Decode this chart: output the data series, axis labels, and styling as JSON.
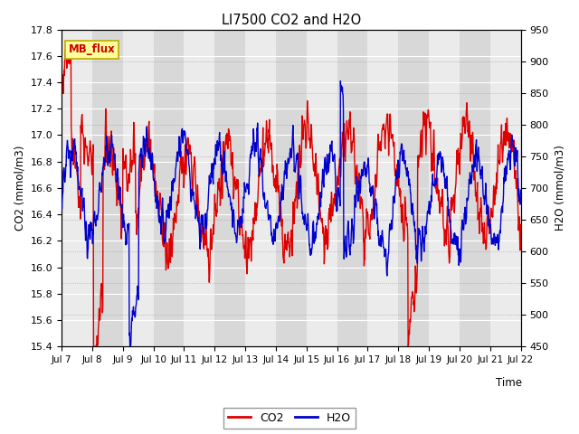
{
  "title": "LI7500 CO2 and H2O",
  "xlabel": "Time",
  "ylabel_left": "CO2 (mmol/m3)",
  "ylabel_right": "H2O (mmol/m3)",
  "ylim_left": [
    15.4,
    17.8
  ],
  "ylim_right": [
    450,
    950
  ],
  "yticks_left": [
    15.4,
    15.6,
    15.8,
    16.0,
    16.2,
    16.4,
    16.6,
    16.8,
    17.0,
    17.2,
    17.4,
    17.6,
    17.8
  ],
  "yticks_right": [
    450,
    500,
    550,
    600,
    650,
    700,
    750,
    800,
    850,
    900,
    950
  ],
  "xtick_labels": [
    "Jul 7",
    "Jul 8",
    "Jul 9",
    "Jul 10",
    "Jul 11",
    "Jul 12",
    "Jul 13",
    "Jul 14",
    "Jul 15",
    "Jul 16",
    "Jul 17",
    "Jul 18",
    "Jul 19",
    "Jul 20",
    "Jul 21",
    "Jul 22"
  ],
  "color_co2": "#dd0000",
  "color_h2o": "#0000cc",
  "label_co2": "CO2",
  "label_h2o": "H2O",
  "annotation_text": "MB_flux",
  "annotation_bg": "#ffff99",
  "annotation_border": "#bbaa00",
  "bg_band_light": "#ebebeb",
  "bg_band_dark": "#d8d8d8",
  "plot_bg": "#ebebeb",
  "linewidth": 1.0
}
